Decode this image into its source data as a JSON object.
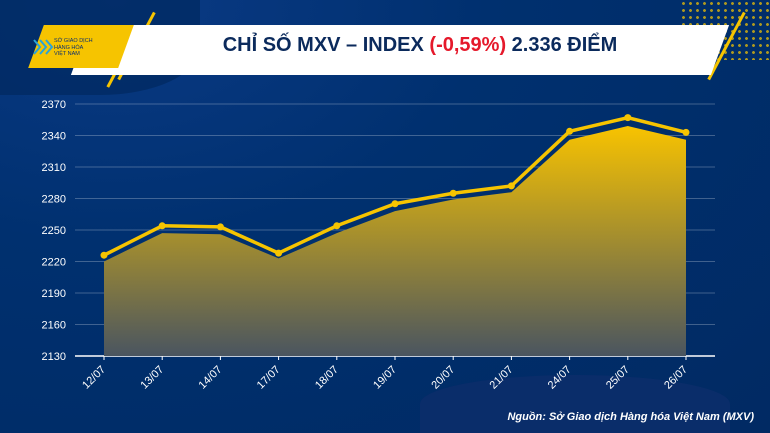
{
  "header": {
    "logo_text": [
      "SỞ GIAO DỊCH",
      "HÀNG HÓA",
      "VIỆT NAM"
    ],
    "title_prefix": "CHỈ SỐ MXV – INDEX ",
    "title_change": "(-0,59%)",
    "title_suffix": " 2.336 ĐIỂM"
  },
  "colors": {
    "accent": "#f6c400",
    "background": "#00306f",
    "negative": "#e5192b"
  },
  "chart_data": {
    "type": "area",
    "title": "CHỈ SỐ MXV – INDEX (-0,59%) 2.336 ĐIỂM",
    "categories": [
      "12/07",
      "13/07",
      "14/07",
      "17/07",
      "18/07",
      "19/07",
      "20/07",
      "21/07",
      "24/07",
      "25/07",
      "26/07"
    ],
    "series": [
      {
        "name": "line",
        "kind": "line",
        "values": [
          2226,
          2254,
          2253,
          2228,
          2254,
          2275,
          2285,
          2292,
          2344,
          2357,
          2343
        ]
      },
      {
        "name": "area",
        "kind": "area",
        "values": [
          2220,
          2247,
          2246,
          2223,
          2247,
          2268,
          2279,
          2286,
          2336,
          2349,
          2336
        ]
      }
    ],
    "yticks": [
      2130,
      2160,
      2190,
      2220,
      2250,
      2280,
      2310,
      2340,
      2370
    ],
    "ylim": [
      2130,
      2370
    ],
    "grid": true,
    "xlabel": "",
    "ylabel": ""
  },
  "footer": {
    "source": "Nguồn: Sở Giao dịch Hàng hóa Việt Nam (MXV)"
  }
}
